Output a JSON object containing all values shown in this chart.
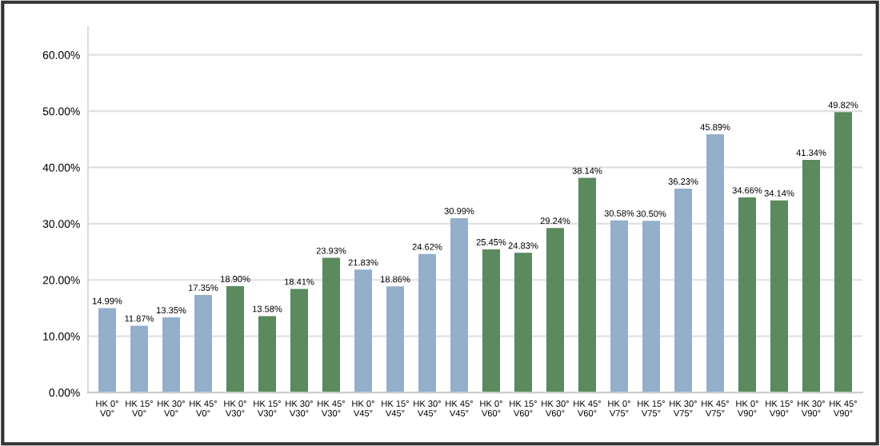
{
  "chart_data": {
    "type": "bar",
    "categories": [
      "HK 0°\nV0°",
      "HK 15°\nV0°",
      "HK 30°\nV0°",
      "HK 45°\nV0°",
      "HK 0°\nV30°",
      "HK 15°\nV30°",
      "HK 30°\nV30°",
      "HK 45°\nV30°",
      "HK 0°\nV45°",
      "HK 15°\nV45°",
      "HK 30°\nV45°",
      "HK 45°\nV45°",
      "HK 0°\nV60°",
      "HK 15°\nV60°",
      "HK 30°\nV60°",
      "HK 45°\nV60°",
      "HK 0°\nV75°",
      "HK 15°\nV75°",
      "HK 30°\nV75°",
      "HK 45°\nV75°",
      "HK 0°\nV90°",
      "HK 15°\nV90°",
      "HK 30°\nV90°",
      "HK 45°\nV90°"
    ],
    "values": [
      14.99,
      11.87,
      13.35,
      17.35,
      18.9,
      13.58,
      18.41,
      23.93,
      21.83,
      18.86,
      24.62,
      30.99,
      25.45,
      24.83,
      29.24,
      38.14,
      30.58,
      30.5,
      36.23,
      45.89,
      34.66,
      34.14,
      41.34,
      49.82
    ],
    "value_labels": [
      "14.99%",
      "11.87%",
      "13.35%",
      "17.35%",
      "18.90%",
      "13.58%",
      "18.41%",
      "23.93%",
      "21.83%",
      "18.86%",
      "24.62%",
      "30.99%",
      "25.45%",
      "24.83%",
      "29.24%",
      "38.14%",
      "30.58%",
      "30.50%",
      "36.23%",
      "45.89%",
      "34.66%",
      "34.14%",
      "41.34%",
      "49.82%"
    ],
    "colors": [
      "#93afcc",
      "#93afcc",
      "#93afcc",
      "#93afcc",
      "#5a8a5e",
      "#5a8a5e",
      "#5a8a5e",
      "#5a8a5e",
      "#93afcc",
      "#93afcc",
      "#93afcc",
      "#93afcc",
      "#5a8a5e",
      "#5a8a5e",
      "#5a8a5e",
      "#5a8a5e",
      "#93afcc",
      "#93afcc",
      "#93afcc",
      "#93afcc",
      "#5a8a5e",
      "#5a8a5e",
      "#5a8a5e",
      "#5a8a5e"
    ],
    "ylim": [
      0,
      65
    ],
    "yticks": [
      {
        "value": 0,
        "label": "0.00%"
      },
      {
        "value": 10,
        "label": "10.00%"
      },
      {
        "value": 20,
        "label": "20.00%"
      },
      {
        "value": 30,
        "label": "30.00%"
      },
      {
        "value": 40,
        "label": "40.00%"
      },
      {
        "value": 50,
        "label": "50.00%"
      },
      {
        "value": 60,
        "label": "60.00%"
      }
    ],
    "grid": "y"
  }
}
